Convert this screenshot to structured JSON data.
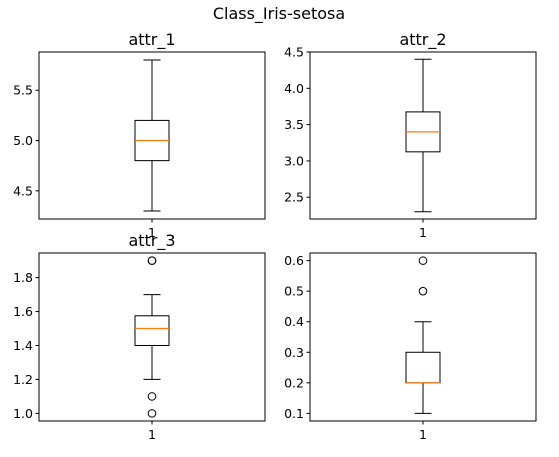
{
  "figure": {
    "suptitle": "Class_Iris-setosa"
  },
  "chart_data": [
    {
      "type": "box",
      "title": "attr_1",
      "categories": [
        "1"
      ],
      "ylim": [
        4.22,
        5.88
      ],
      "yticks": [
        4.5,
        5.0,
        5.5
      ],
      "ytick_labels": [
        "4.5",
        "5.0",
        "5.5"
      ],
      "box": {
        "min": 4.3,
        "q1": 4.8,
        "median": 5.0,
        "q3": 5.2,
        "max": 5.8,
        "outliers": []
      }
    },
    {
      "type": "box",
      "title": "attr_2",
      "categories": [
        "1"
      ],
      "ylim": [
        2.2,
        4.5
      ],
      "yticks": [
        2.5,
        3.0,
        3.5,
        4.0,
        4.5
      ],
      "ytick_labels": [
        "2.5",
        "3.0",
        "3.5",
        "4.0",
        "4.5"
      ],
      "box": {
        "min": 2.3,
        "q1": 3.125,
        "median": 3.4,
        "q3": 3.675,
        "max": 4.4,
        "outliers": []
      }
    },
    {
      "type": "box",
      "title": "attr_3",
      "categories": [
        "1"
      ],
      "ylim": [
        0.955,
        1.945
      ],
      "yticks": [
        1.0,
        1.2,
        1.4,
        1.6,
        1.8
      ],
      "ytick_labels": [
        "1.0",
        "1.2",
        "1.4",
        "1.6",
        "1.8"
      ],
      "box": {
        "min": 1.2,
        "q1": 1.4,
        "median": 1.5,
        "q3": 1.575,
        "max": 1.7,
        "outliers": [
          1.0,
          1.1,
          1.9,
          1.9
        ]
      }
    },
    {
      "type": "box",
      "title": "",
      "categories": [
        "1"
      ],
      "ylim": [
        0.075,
        0.625
      ],
      "yticks": [
        0.1,
        0.2,
        0.3,
        0.4,
        0.5,
        0.6
      ],
      "ytick_labels": [
        "0.1",
        "0.2",
        "0.3",
        "0.4",
        "0.5",
        "0.6"
      ],
      "box": {
        "min": 0.1,
        "q1": 0.2,
        "median": 0.2,
        "q3": 0.3,
        "max": 0.4,
        "outliers": [
          0.5,
          0.6
        ]
      }
    }
  ],
  "colors": {
    "median": "#ff7f0e",
    "line": "#000000"
  }
}
